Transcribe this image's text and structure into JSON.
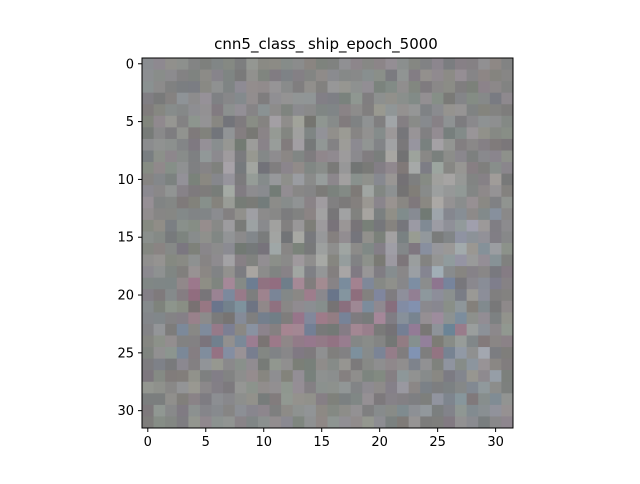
{
  "chart_data": {
    "type": "heatmap",
    "title": "cnn5_class_ ship_epoch_5000",
    "xlabel": "",
    "ylabel": "",
    "xlim": [
      -0.5,
      31.5
    ],
    "ylim": [
      31.5,
      -0.5
    ],
    "grid": false,
    "rows": 32,
    "cols": 32,
    "xticks": [
      0,
      5,
      10,
      15,
      20,
      25,
      30
    ],
    "yticks": [
      0,
      5,
      10,
      15,
      20,
      25,
      30
    ],
    "xtick_labels": [
      "0",
      "5",
      "10",
      "15",
      "20",
      "25",
      "30"
    ],
    "ytick_labels": [
      "0",
      "5",
      "10",
      "15",
      "20",
      "25",
      "30"
    ],
    "base_color": "#8a8a8a",
    "content_description": "noisy 32x32 RGB visualization; faint vertical bright stripes at columns ~6-25 in rows ~5-18, and a horizontal darker band with pink/blue tints around rows ~19-24 (ship-like shape)"
  }
}
